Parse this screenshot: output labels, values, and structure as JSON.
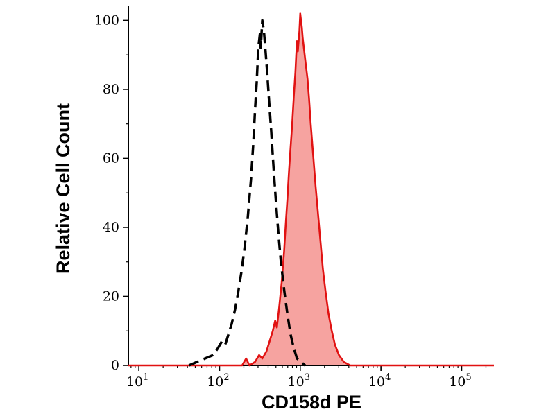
{
  "chart_data": {
    "type": "area",
    "title": "",
    "xlabel": "CD158d PE",
    "ylabel": "Relative Cell Count",
    "x_scale": "log10",
    "x_range_log10": [
      0.87,
      5.4
    ],
    "ylim": [
      0,
      103.5
    ],
    "y_ticks": [
      0,
      20,
      40,
      60,
      80,
      100
    ],
    "y_minor_ticks": [
      10,
      30,
      50,
      70,
      90
    ],
    "x_tick_base": "10",
    "x_major_exponents": [
      1,
      2,
      3,
      4,
      5
    ],
    "grid": false,
    "legend": "none",
    "colors": {
      "axis": "#000000",
      "red_stroke": "#e11212",
      "red_fill": "#f6a3a0",
      "dashed_stroke": "#000000"
    },
    "series": [
      {
        "name": "red-filled-histogram",
        "style": "solid-filled",
        "color": "#e11212",
        "fill": "#f6a3a0",
        "fill_opacity": 1,
        "stroke_width": 2.6,
        "dash": "",
        "points_logx_y": [
          [
            0.87,
            0
          ],
          [
            1.5,
            0
          ],
          [
            2.0,
            0
          ],
          [
            2.28,
            0
          ],
          [
            2.33,
            2
          ],
          [
            2.37,
            0
          ],
          [
            2.44,
            1
          ],
          [
            2.49,
            3
          ],
          [
            2.53,
            2
          ],
          [
            2.58,
            4
          ],
          [
            2.62,
            7
          ],
          [
            2.66,
            10
          ],
          [
            2.69,
            13
          ],
          [
            2.71,
            11
          ],
          [
            2.74,
            17
          ],
          [
            2.77,
            24
          ],
          [
            2.8,
            33
          ],
          [
            2.82,
            41
          ],
          [
            2.84,
            48
          ],
          [
            2.86,
            56
          ],
          [
            2.88,
            63
          ],
          [
            2.9,
            70
          ],
          [
            2.92,
            78
          ],
          [
            2.94,
            85
          ],
          [
            2.95,
            90
          ],
          [
            2.96,
            94
          ],
          [
            2.97,
            91
          ],
          [
            2.99,
            97
          ],
          [
            3.0,
            102
          ],
          [
            3.02,
            98
          ],
          [
            3.03,
            95
          ],
          [
            3.05,
            91
          ],
          [
            3.07,
            87
          ],
          [
            3.09,
            83
          ],
          [
            3.11,
            77
          ],
          [
            3.13,
            70
          ],
          [
            3.16,
            61
          ],
          [
            3.19,
            52
          ],
          [
            3.22,
            44
          ],
          [
            3.25,
            36
          ],
          [
            3.28,
            28
          ],
          [
            3.31,
            22
          ],
          [
            3.35,
            15
          ],
          [
            3.39,
            10
          ],
          [
            3.43,
            6
          ],
          [
            3.48,
            3
          ],
          [
            3.54,
            1
          ],
          [
            3.62,
            0
          ],
          [
            4.0,
            0
          ],
          [
            4.5,
            0
          ],
          [
            5.4,
            0
          ]
        ]
      },
      {
        "name": "black-dashed-histogram",
        "style": "dashed",
        "color": "#000000",
        "fill": "none",
        "fill_opacity": 0,
        "stroke_width": 3.5,
        "dash": "15 8",
        "points_logx_y": [
          [
            1.62,
            0
          ],
          [
            1.72,
            1
          ],
          [
            1.82,
            2
          ],
          [
            1.92,
            3
          ],
          [
            1.98,
            5
          ],
          [
            2.03,
            7
          ],
          [
            2.07,
            6
          ],
          [
            2.11,
            9
          ],
          [
            2.15,
            12
          ],
          [
            2.19,
            16
          ],
          [
            2.23,
            21
          ],
          [
            2.27,
            27
          ],
          [
            2.31,
            34
          ],
          [
            2.35,
            43
          ],
          [
            2.39,
            54
          ],
          [
            2.42,
            65
          ],
          [
            2.44,
            74
          ],
          [
            2.46,
            82
          ],
          [
            2.48,
            92
          ],
          [
            2.5,
            96
          ],
          [
            2.51,
            92
          ],
          [
            2.53,
            100
          ],
          [
            2.55,
            97
          ],
          [
            2.57,
            91
          ],
          [
            2.59,
            85
          ],
          [
            2.61,
            78
          ],
          [
            2.64,
            68
          ],
          [
            2.67,
            57
          ],
          [
            2.7,
            47
          ],
          [
            2.73,
            38
          ],
          [
            2.76,
            30
          ],
          [
            2.8,
            22
          ],
          [
            2.84,
            15
          ],
          [
            2.88,
            9
          ],
          [
            2.92,
            5
          ],
          [
            2.96,
            2
          ],
          [
            3.01,
            1
          ],
          [
            3.06,
            0
          ]
        ]
      }
    ]
  }
}
